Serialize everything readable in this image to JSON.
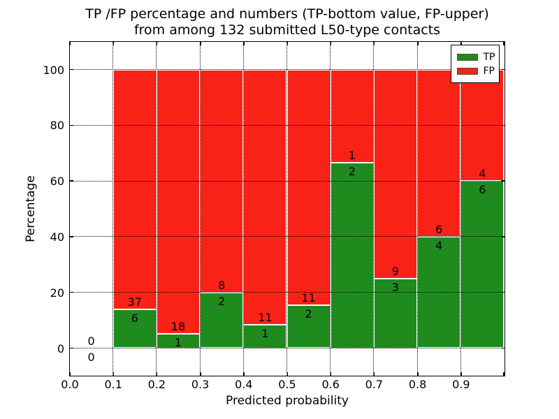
{
  "title": {
    "line1": "TP /FP percentage and numbers (TP-bottom value, FP-upper)",
    "line2": "from among 132 submitted L50-type contacts"
  },
  "axes": {
    "x_label": "Predicted probability",
    "y_label": "Percentage",
    "x_tick_labels": [
      "0.0",
      "0.1",
      "0.2",
      "0.3",
      "0.4",
      "0.5",
      "0.6",
      "0.7",
      "0.8",
      "0.9"
    ],
    "y_tick_labels": [
      "0",
      "20",
      "40",
      "60",
      "80",
      "100"
    ],
    "y_tick_values": [
      0,
      20,
      40,
      60,
      80,
      100
    ]
  },
  "legend": {
    "items": [
      {
        "label": "TP",
        "color": "#1f8b1f"
      },
      {
        "label": "FP",
        "color": "#f92217"
      }
    ]
  },
  "colors": {
    "tp": "#1f8b1f",
    "fp": "#f92217",
    "grid": "#000000",
    "background": "#ffffff"
  },
  "chart_data": {
    "type": "bar",
    "stacked": true,
    "normalized": "each bar sums to 100%",
    "title": "TP /FP percentage and numbers (TP-bottom value, FP-upper) from among 132 submitted L50-type contacts",
    "xlabel": "Predicted probability",
    "ylabel": "Percentage",
    "xlim": [
      0.0,
      1.0
    ],
    "ylim": [
      -10,
      110
    ],
    "grid": true,
    "legend_position": "upper right",
    "total_contacts": 132,
    "bin_width": 0.1,
    "bins": [
      {
        "range": [
          0.0,
          0.1
        ],
        "tp": 0,
        "fp": 0,
        "tp_percent": null
      },
      {
        "range": [
          0.1,
          0.2
        ],
        "tp": 6,
        "fp": 37,
        "tp_percent": 13.95
      },
      {
        "range": [
          0.2,
          0.3
        ],
        "tp": 1,
        "fp": 18,
        "tp_percent": 5.26
      },
      {
        "range": [
          0.3,
          0.4
        ],
        "tp": 2,
        "fp": 8,
        "tp_percent": 20.0
      },
      {
        "range": [
          0.4,
          0.5
        ],
        "tp": 1,
        "fp": 11,
        "tp_percent": 8.33
      },
      {
        "range": [
          0.5,
          0.6
        ],
        "tp": 2,
        "fp": 11,
        "tp_percent": 15.38
      },
      {
        "range": [
          0.6,
          0.7
        ],
        "tp": 2,
        "fp": 1,
        "tp_percent": 66.67
      },
      {
        "range": [
          0.7,
          0.8
        ],
        "tp": 3,
        "fp": 9,
        "tp_percent": 25.0
      },
      {
        "range": [
          0.8,
          0.9
        ],
        "tp": 4,
        "fp": 6,
        "tp_percent": 40.0
      },
      {
        "range": [
          0.9,
          1.0
        ],
        "tp": 6,
        "fp": 4,
        "tp_percent": 60.0
      }
    ],
    "series": [
      {
        "name": "TP",
        "color": "#1f8b1f",
        "counts": [
          0,
          6,
          1,
          2,
          1,
          2,
          2,
          3,
          4,
          6
        ]
      },
      {
        "name": "FP",
        "color": "#f92217",
        "counts": [
          0,
          37,
          18,
          8,
          11,
          11,
          1,
          9,
          6,
          4
        ]
      }
    ]
  }
}
